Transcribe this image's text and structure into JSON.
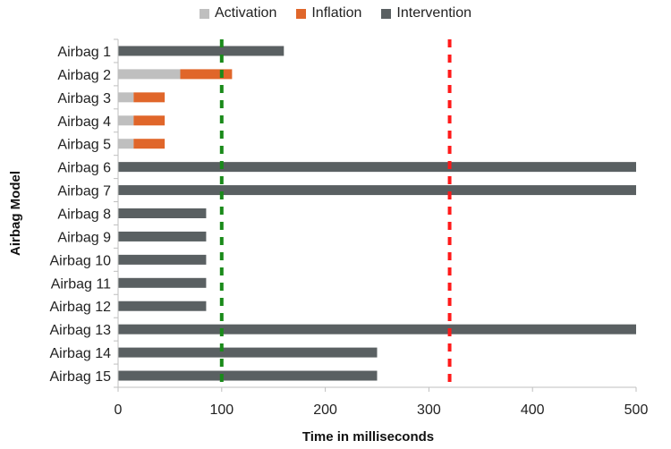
{
  "chart_data": {
    "type": "bar",
    "orientation": "horizontal",
    "stacked": true,
    "categories": [
      "Airbag 1",
      "Airbag 2",
      "Airbag 3",
      "Airbag 4",
      "Airbag 5",
      "Airbag 6",
      "Airbag 7",
      "Airbag 8",
      "Airbag 9",
      "Airbag 10",
      "Airbag 11",
      "Airbag 12",
      "Airbag 13",
      "Airbag 14",
      "Airbag 15"
    ],
    "series": [
      {
        "name": "Activation",
        "color": "#bfbfbf",
        "values": [
          0,
          60,
          15,
          15,
          15,
          0,
          0,
          0,
          0,
          0,
          0,
          0,
          0,
          0,
          0
        ]
      },
      {
        "name": "Inflation",
        "color": "#e0662a",
        "values": [
          0,
          50,
          30,
          30,
          30,
          0,
          0,
          0,
          0,
          0,
          0,
          0,
          0,
          0,
          0
        ]
      },
      {
        "name": "Intervention",
        "color": "#5a6062",
        "values": [
          160,
          0,
          0,
          0,
          0,
          500,
          500,
          85,
          85,
          85,
          85,
          85,
          500,
          250,
          250
        ]
      }
    ],
    "reference_lines": [
      {
        "x": 100,
        "color": "#1a8a1a",
        "style": "dashed"
      },
      {
        "x": 320,
        "color": "#ff1a1a",
        "style": "dashed"
      }
    ],
    "xlabel": "Time in milliseconds",
    "ylabel": "Airbag Model",
    "xlim": [
      0,
      500
    ],
    "xticks": [
      0,
      100,
      200,
      300,
      400,
      500
    ],
    "grid": false,
    "legend_position": "top"
  }
}
